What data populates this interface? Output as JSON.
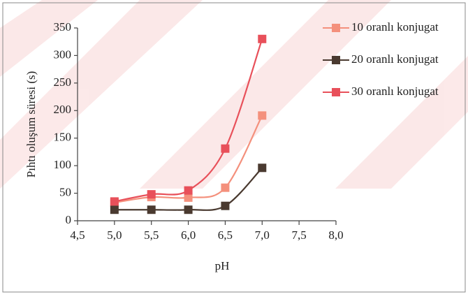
{
  "chart_data": {
    "type": "line",
    "x_label": "pH",
    "y_label": "Pıhtı oluşum süresi (s)",
    "x": [
      5.0,
      5.5,
      6.0,
      6.5,
      7.0
    ],
    "series": [
      {
        "name": "10 oranlı konjugat",
        "color": "#f4907c",
        "values": [
          33,
          43,
          42,
          60,
          191
        ]
      },
      {
        "name": "20 oranlı konjugat",
        "color": "#4a3a30",
        "values": [
          20,
          20,
          20,
          27,
          96
        ]
      },
      {
        "name": "30 oranlı konjugat",
        "color": "#e8505a",
        "values": [
          35,
          48,
          55,
          131,
          330
        ]
      }
    ],
    "xlim": [
      4.5,
      8.0
    ],
    "xticks": [
      {
        "value": 4.5,
        "label": "4,5"
      },
      {
        "value": 5.0,
        "label": "5,0"
      },
      {
        "value": 5.5,
        "label": "5,5"
      },
      {
        "value": 6.0,
        "label": "6,0"
      },
      {
        "value": 6.5,
        "label": "6,5"
      },
      {
        "value": 7.0,
        "label": "7,0"
      },
      {
        "value": 7.5,
        "label": "7,5"
      },
      {
        "value": 8.0,
        "label": "8,0"
      }
    ],
    "ylim": [
      0,
      350
    ],
    "yticks": [
      0,
      50,
      100,
      150,
      200,
      250,
      300,
      350
    ],
    "smooth": true
  }
}
